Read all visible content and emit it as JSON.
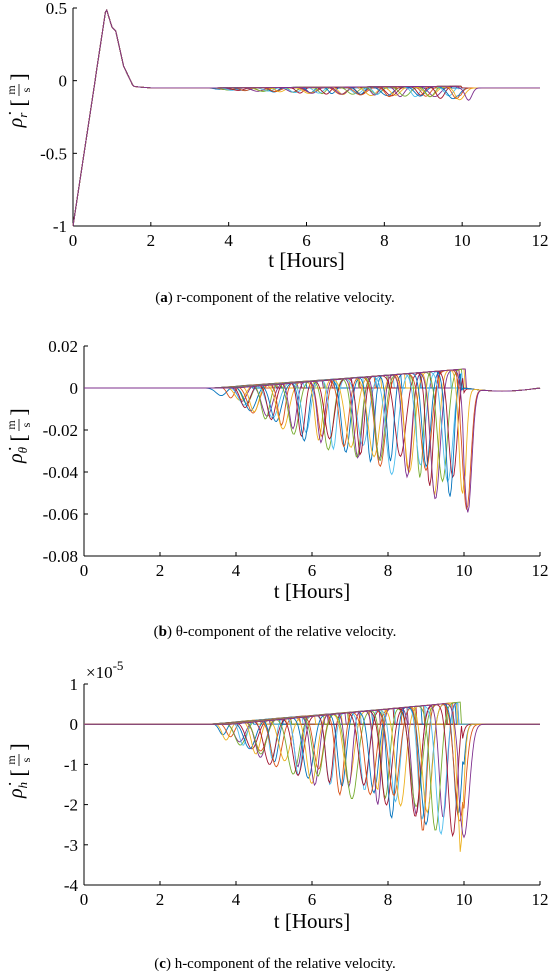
{
  "chart_data": [
    {
      "type": "line",
      "panel_label": "a",
      "caption_text": "r-component of the relative velocity.",
      "xlabel": "t [Hours]",
      "ylabel": "ρ̇",
      "ylabel_sub": "r",
      "ylabel_unit_num": "m",
      "ylabel_unit_den": "s",
      "xlim": [
        0,
        12
      ],
      "ylim": [
        -1,
        0.5
      ],
      "xticks": [
        0,
        2,
        4,
        6,
        8,
        10,
        12
      ],
      "yticks": [
        -1,
        -0.5,
        0,
        0.5
      ],
      "ytick_labels": [
        "-1",
        "-0.5",
        "0",
        "0.5"
      ],
      "multiplier_label": "",
      "grid": false,
      "series_count": 60,
      "common_curve": {
        "x": [
          0,
          0.85,
          1.0,
          1.1,
          1.3,
          1.55,
          2.0,
          12.0
        ],
        "y": [
          -1.0,
          0.5,
          0.37,
          0.34,
          0.1,
          -0.04,
          -0.05,
          -0.05
        ]
      },
      "dip_family": {
        "t_start": 3.3,
        "t_end": 10.2,
        "depth_min": 0.01,
        "depth_max": 0.09,
        "plateau_end": 9.9,
        "plateau_level": 0.02
      }
    },
    {
      "type": "line",
      "panel_label": "b",
      "caption_text": "θ-component of the relative velocity.",
      "xlabel": "t [Hours]",
      "ylabel": "ρ̇",
      "ylabel_sub": "θ",
      "ylabel_unit_num": "m",
      "ylabel_unit_den": "s",
      "xlim": [
        0,
        12
      ],
      "ylim": [
        -0.08,
        0.02
      ],
      "xticks": [
        0,
        2,
        4,
        6,
        8,
        10,
        12
      ],
      "yticks": [
        -0.08,
        -0.06,
        -0.04,
        -0.02,
        0,
        0.02
      ],
      "ytick_labels": [
        "-0.08",
        "-0.06",
        "-0.04",
        "-0.02",
        "0",
        "0.02"
      ],
      "multiplier_label": "",
      "grid": false,
      "series_count": 60,
      "dip_family": {
        "t_start": 3.3,
        "t_end": 10.3,
        "depth_min": 0.004,
        "depth_max": 0.068,
        "plateau_end": 9.95,
        "plateau_level": 0.009
      }
    },
    {
      "type": "line",
      "panel_label": "c",
      "caption_text": "h-component of the relative velocity.",
      "xlabel": "t [Hours]",
      "ylabel": "ρ̇",
      "ylabel_sub": "h",
      "ylabel_unit_num": "m",
      "ylabel_unit_den": "s",
      "xlim": [
        0,
        12
      ],
      "ylim": [
        -4,
        1
      ],
      "xticks": [
        0,
        2,
        4,
        6,
        8,
        10,
        12
      ],
      "yticks": [
        -4,
        -3,
        -2,
        -1,
        0,
        1
      ],
      "ytick_labels": [
        "-4",
        "-3",
        "-2",
        "-1",
        "0",
        "1"
      ],
      "multiplier_label": "×10",
      "multiplier_exp": "-5",
      "grid": false,
      "series_count": 60,
      "dip_family": {
        "t_start": 3.2,
        "t_end": 10.3,
        "depth_min": 0.3,
        "depth_max": 3.6,
        "plateau_end": 9.9,
        "plateau_level": 0.55
      }
    }
  ],
  "colors": [
    "#0072BD",
    "#D95319",
    "#EDB120",
    "#7E2F8E",
    "#77AC30",
    "#4DBEEE",
    "#A2142F"
  ]
}
